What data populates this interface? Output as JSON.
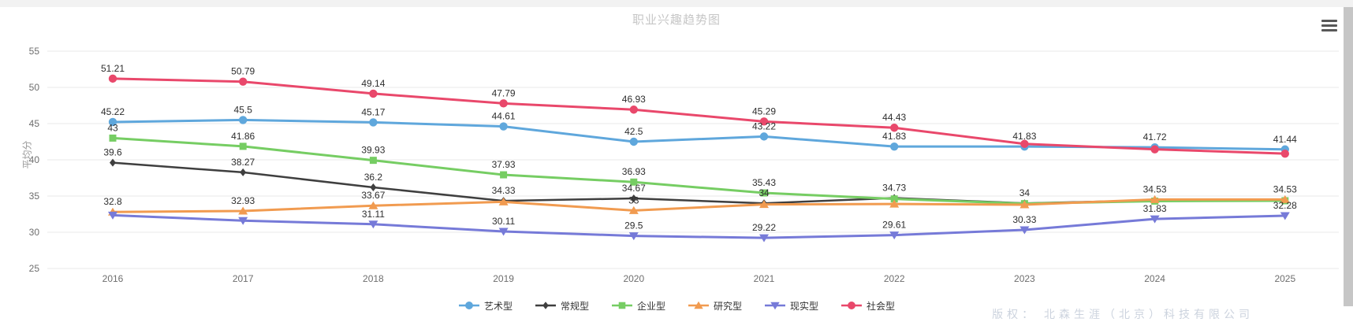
{
  "header": {
    "title": "职业兴趣趋势图"
  },
  "icons": {
    "menu": "hamburger-menu-icon"
  },
  "watermark": {
    "text": "版权：  北森生涯（北京）科技有限公司"
  },
  "chart_data": {
    "type": "line",
    "title": "职业兴趣趋势图",
    "ylabel": "平均分",
    "xlabel": "",
    "x": [
      "2016",
      "2017",
      "2018",
      "2019",
      "2020",
      "2021",
      "2022",
      "2023",
      "2024",
      "2025"
    ],
    "ylim": [
      25,
      55
    ],
    "yticks": [
      25,
      30,
      35,
      40,
      45,
      50,
      55
    ],
    "grid": true,
    "grid_color": "#e9e9e9",
    "axis_label_color": "#6e6e6e",
    "legend_position": "bottom",
    "series": [
      {
        "id": "artistic",
        "name": "艺术型",
        "color": "#5fa7dc",
        "marker": "circle",
        "line_width": 3,
        "values": [
          45.22,
          45.5,
          45.17,
          44.61,
          42.5,
          43.22,
          41.83,
          41.83,
          41.72,
          41.44
        ],
        "labels": [
          "45.22",
          "45.5",
          "45.17",
          "44.61",
          "42.5",
          "43.22",
          "41.83",
          "41.83",
          "41.72",
          "41.44"
        ]
      },
      {
        "id": "conventional",
        "name": "常规型",
        "color": "#3f3f3f",
        "marker": "diamond",
        "line_width": 2.5,
        "values": [
          39.6,
          38.27,
          36.2,
          34.33,
          34.67,
          34,
          34.73,
          34,
          34.4,
          34.45
        ],
        "labels": [
          "39.6",
          "38.27",
          "36.2",
          "34.33",
          "34.67",
          "34",
          "34.73",
          "34",
          "",
          ""
        ]
      },
      {
        "id": "enterprising",
        "name": "企业型",
        "color": "#76cd63",
        "marker": "square",
        "line_width": 3,
        "values": [
          43,
          41.86,
          39.93,
          37.93,
          36.93,
          35.43,
          34.6,
          33.95,
          34.3,
          34.35
        ],
        "labels": [
          "43",
          "41.86",
          "39.93",
          "37.93",
          "36.93",
          "35.43",
          "",
          "",
          "",
          ""
        ]
      },
      {
        "id": "investigative",
        "name": "研究型",
        "color": "#f19b50",
        "marker": "triangle",
        "line_width": 3,
        "values": [
          32.8,
          32.93,
          33.67,
          34.2,
          33,
          33.85,
          33.9,
          33.8,
          34.53,
          34.53
        ],
        "labels": [
          "32.8",
          "32.93",
          "33.67",
          "",
          "33",
          "",
          "",
          "",
          "34.53",
          "34.53"
        ]
      },
      {
        "id": "realistic",
        "name": "现实型",
        "color": "#767ad8",
        "marker": "triangle-down",
        "line_width": 3,
        "values": [
          32.35,
          31.6,
          31.11,
          30.11,
          29.5,
          29.22,
          29.61,
          30.33,
          31.83,
          32.28
        ],
        "labels": [
          "",
          "",
          "31.11",
          "30.11",
          "29.5",
          "29.22",
          "29.61",
          "30.33",
          "31.83",
          "32.28"
        ]
      },
      {
        "id": "social",
        "name": "社会型",
        "color": "#e9486b",
        "marker": "circle",
        "line_width": 3,
        "values": [
          51.21,
          50.79,
          49.14,
          47.79,
          46.93,
          45.29,
          44.43,
          42.2,
          41.45,
          40.85
        ],
        "labels": [
          "51.21",
          "50.79",
          "49.14",
          "47.79",
          "46.93",
          "45.29",
          "44.43",
          "",
          "",
          ""
        ]
      }
    ]
  }
}
